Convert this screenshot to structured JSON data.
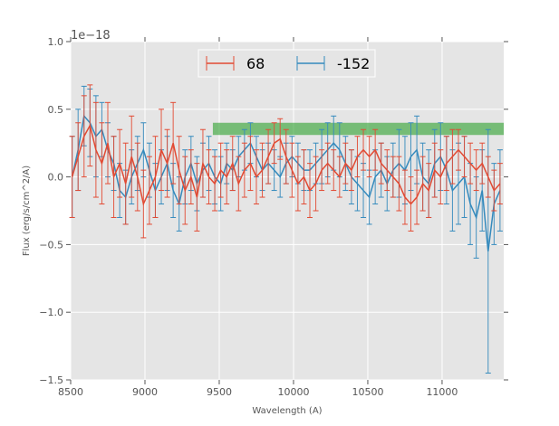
{
  "chart_data": {
    "type": "line",
    "title": "",
    "xlabel": "Wavelength (A)",
    "ylabel": "Flux (erg/s/cm^2/A)",
    "offset_text": "1e−18",
    "xlim": [
      8500,
      11415
    ],
    "ylim": [
      -1.5,
      1.0
    ],
    "xticks": [
      8500,
      9000,
      9500,
      10000,
      10500,
      11000
    ],
    "xtick_labels": [
      "8500",
      "9000",
      "9500",
      "10000",
      "10500",
      "11000"
    ],
    "yticks": [
      -1.5,
      -1.0,
      -0.5,
      0.0,
      0.5,
      1.0
    ],
    "ytick_labels": [
      "−1.5",
      "−1.0",
      "−0.5",
      "0.0",
      "0.5",
      "1.0"
    ],
    "grid": true,
    "legend_placement": "top-center",
    "band": {
      "x": [
        9457,
        11415
      ],
      "y": [
        0.31,
        0.4
      ],
      "color": "#2ca02c"
    },
    "x_start": 8510,
    "x_step": 40,
    "series": [
      {
        "name": "68",
        "color": "#e24a33",
        "values": [
          0.0,
          0.15,
          0.3,
          0.38,
          0.2,
          0.1,
          0.25,
          0.0,
          0.1,
          -0.05,
          0.15,
          0.0,
          -0.2,
          -0.1,
          0.0,
          0.2,
          0.1,
          0.25,
          0.05,
          -0.1,
          0.0,
          -0.15,
          0.1,
          0.0,
          -0.05,
          0.05,
          0.0,
          0.1,
          -0.05,
          0.05,
          0.1,
          0.0,
          0.05,
          0.15,
          0.25,
          0.28,
          0.15,
          0.05,
          -0.05,
          0.0,
          -0.1,
          -0.05,
          0.05,
          0.1,
          0.05,
          0.0,
          0.1,
          0.05,
          0.15,
          0.2,
          0.15,
          0.2,
          0.1,
          0.05,
          0.0,
          -0.05,
          -0.15,
          -0.2,
          -0.15,
          -0.05,
          -0.1,
          0.05,
          0.0,
          0.1,
          0.15,
          0.2,
          0.15,
          0.1,
          0.05,
          0.1,
          0.0,
          -0.1,
          -0.05
        ],
        "errors": [
          0.3,
          0.25,
          0.3,
          0.3,
          0.35,
          0.3,
          0.3,
          0.3,
          0.25,
          0.3,
          0.3,
          0.25,
          0.25,
          0.25,
          0.3,
          0.3,
          0.25,
          0.3,
          0.25,
          0.25,
          0.2,
          0.25,
          0.25,
          0.2,
          0.2,
          0.2,
          0.2,
          0.2,
          0.2,
          0.2,
          0.2,
          0.2,
          0.2,
          0.2,
          0.15,
          0.15,
          0.2,
          0.2,
          0.2,
          0.2,
          0.2,
          0.2,
          0.15,
          0.15,
          0.15,
          0.15,
          0.15,
          0.15,
          0.15,
          0.15,
          0.15,
          0.15,
          0.15,
          0.15,
          0.15,
          0.2,
          0.2,
          0.2,
          0.2,
          0.2,
          0.2,
          0.2,
          0.2,
          0.2,
          0.2,
          0.15,
          0.15,
          0.15,
          0.15,
          0.15,
          0.15,
          0.15,
          0.15
        ]
      },
      {
        "name": "-152",
        "color": "#348abd",
        "values": [
          0.0,
          0.2,
          0.45,
          0.4,
          0.3,
          0.35,
          0.2,
          0.1,
          -0.1,
          -0.15,
          0.0,
          0.1,
          0.2,
          0.05,
          -0.1,
          0.0,
          0.1,
          -0.1,
          -0.2,
          0.0,
          0.1,
          -0.05,
          0.05,
          0.1,
          0.0,
          -0.05,
          0.1,
          0.05,
          0.15,
          0.2,
          0.25,
          0.15,
          0.05,
          0.1,
          0.05,
          0.0,
          0.1,
          0.15,
          0.1,
          0.05,
          0.05,
          0.1,
          0.15,
          0.2,
          0.25,
          0.2,
          0.1,
          0.0,
          -0.05,
          -0.1,
          -0.15,
          0.0,
          0.05,
          -0.05,
          0.05,
          0.1,
          0.05,
          0.15,
          0.2,
          0.0,
          -0.05,
          0.1,
          0.15,
          0.05,
          -0.1,
          -0.05,
          0.0,
          -0.2,
          -0.3,
          -0.1,
          -0.55,
          -0.2,
          -0.1
        ],
        "errors": [
          0.3,
          0.3,
          0.22,
          0.25,
          0.3,
          0.2,
          0.2,
          0.2,
          0.2,
          0.2,
          0.2,
          0.2,
          0.2,
          0.2,
          0.2,
          0.2,
          0.2,
          0.2,
          0.2,
          0.2,
          0.2,
          0.2,
          0.2,
          0.2,
          0.2,
          0.2,
          0.15,
          0.15,
          0.15,
          0.15,
          0.15,
          0.15,
          0.15,
          0.15,
          0.15,
          0.15,
          0.15,
          0.15,
          0.15,
          0.15,
          0.15,
          0.15,
          0.2,
          0.2,
          0.2,
          0.2,
          0.2,
          0.2,
          0.2,
          0.2,
          0.2,
          0.2,
          0.2,
          0.2,
          0.2,
          0.25,
          0.25,
          0.25,
          0.25,
          0.25,
          0.25,
          0.25,
          0.25,
          0.25,
          0.3,
          0.3,
          0.3,
          0.3,
          0.3,
          0.3,
          0.9,
          0.3,
          0.3
        ]
      }
    ]
  }
}
